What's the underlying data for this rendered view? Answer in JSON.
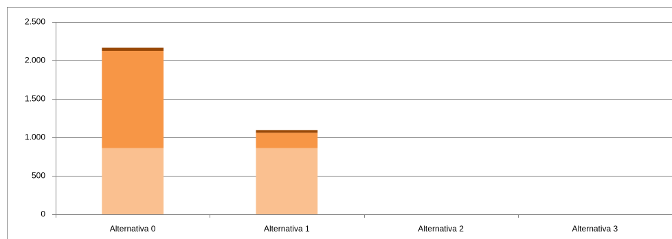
{
  "chart_data": {
    "type": "stacked-bar",
    "categories": [
      "Alternativa 0",
      "Alternativa 1",
      "Alternativa 2",
      "Alternativa 3"
    ],
    "series": [
      {
        "color": "#fac090",
        "values": [
          860,
          860,
          0,
          0
        ]
      },
      {
        "color": "#f79646",
        "values": [
          1265,
          200,
          0,
          0
        ]
      },
      {
        "color": "#984807",
        "values": [
          40,
          35,
          0,
          0
        ]
      }
    ],
    "ylim": [
      0,
      2500
    ],
    "yticks": [
      0,
      500,
      {
        "value": 1000,
        "label": "1.000"
      },
      {
        "value": 1500,
        "label": "1.500"
      },
      {
        "value": 2000,
        "label": "2.000"
      },
      {
        "value": 2500,
        "label": "2.500"
      }
    ],
    "grid": true
  }
}
